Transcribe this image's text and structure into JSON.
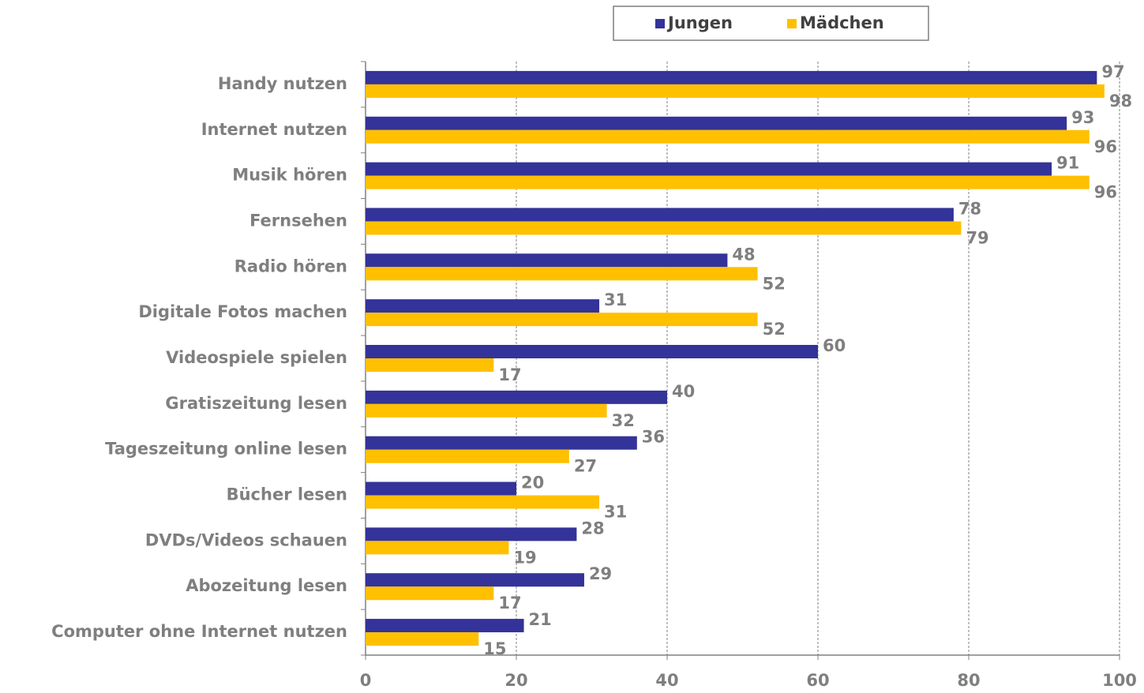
{
  "chart_data": {
    "type": "bar",
    "orientation": "horizontal",
    "categories": [
      "Handy nutzen",
      "Internet nutzen",
      "Musik hören",
      "Fernsehen",
      "Radio hören",
      "Digitale Fotos machen",
      "Videospiele spielen",
      "Gratiszeitung lesen",
      "Tageszeitung online lesen",
      "Bücher lesen",
      "DVDs/Videos schauen",
      "Abozeitung lesen",
      "Computer ohne Internet nutzen"
    ],
    "series": [
      {
        "name": "Jungen",
        "color": "#333399",
        "values": [
          97,
          93,
          91,
          78,
          48,
          31,
          60,
          40,
          36,
          20,
          28,
          29,
          21
        ]
      },
      {
        "name": "Mädchen",
        "color": "#FFC000",
        "values": [
          98,
          96,
          96,
          79,
          52,
          52,
          17,
          32,
          27,
          31,
          19,
          17,
          15
        ]
      }
    ],
    "xlim": [
      0,
      100
    ],
    "xticks": [
      0,
      20,
      40,
      60,
      80,
      100
    ],
    "grid": true,
    "legend": "top"
  }
}
